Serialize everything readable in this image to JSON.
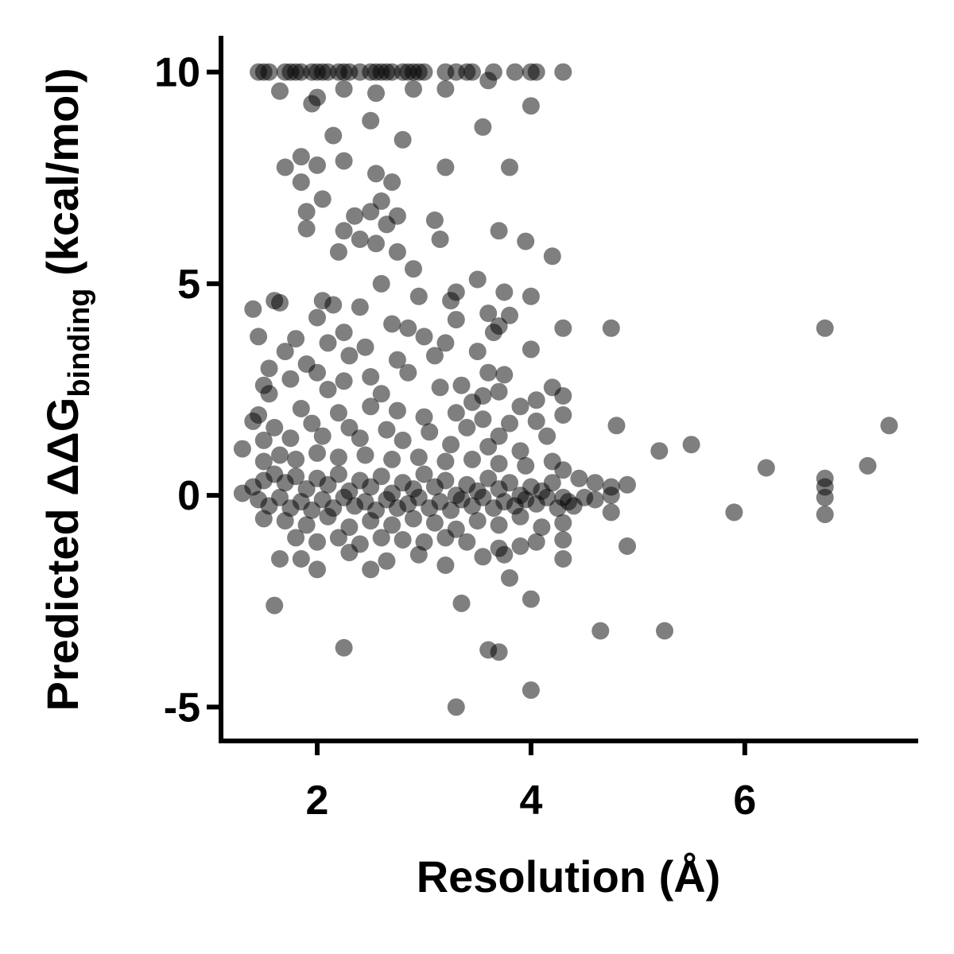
{
  "chart_data": {
    "type": "scatter",
    "title": "",
    "xlabel": "Resolution (Å)",
    "ylabel": {
      "prefix": "Predicted ΔΔG",
      "subscript": "binding",
      "suffix": " (kcal/mol)"
    },
    "xlim": [
      1.1,
      7.6
    ],
    "ylim": [
      -5.8,
      10.8
    ],
    "x_ticks": [
      {
        "value": 2,
        "label": "2"
      },
      {
        "value": 4,
        "label": "4"
      },
      {
        "value": 6,
        "label": "6"
      }
    ],
    "y_ticks": [
      {
        "value": 10,
        "label": "10"
      },
      {
        "value": 5,
        "label": "5"
      },
      {
        "value": 0,
        "label": "0"
      },
      {
        "value": -5,
        "label": "-5"
      }
    ],
    "grid": false,
    "legend": "none",
    "point_color": "#000000",
    "point_opacity": 0.5,
    "series": [
      {
        "values": [
          [
            1.45,
            10.0
          ],
          [
            1.5,
            10.0
          ],
          [
            1.55,
            10.0
          ],
          [
            1.7,
            10.0
          ],
          [
            1.75,
            10.0
          ],
          [
            1.8,
            10.0
          ],
          [
            1.85,
            10.0
          ],
          [
            1.95,
            10.0
          ],
          [
            2.0,
            10.0
          ],
          [
            2.05,
            10.0
          ],
          [
            2.1,
            10.0
          ],
          [
            2.2,
            10.0
          ],
          [
            2.25,
            10.0
          ],
          [
            2.3,
            10.0
          ],
          [
            2.4,
            10.0
          ],
          [
            2.5,
            10.0
          ],
          [
            2.55,
            10.0
          ],
          [
            2.6,
            10.0
          ],
          [
            2.65,
            10.0
          ],
          [
            2.7,
            10.0
          ],
          [
            2.8,
            10.0
          ],
          [
            2.85,
            10.0
          ],
          [
            2.9,
            10.0
          ],
          [
            2.95,
            10.0
          ],
          [
            3.0,
            10.0
          ],
          [
            3.2,
            10.0
          ],
          [
            3.3,
            10.0
          ],
          [
            3.4,
            10.0
          ],
          [
            3.45,
            10.0
          ],
          [
            3.65,
            10.0
          ],
          [
            3.85,
            10.0
          ],
          [
            4.0,
            10.0
          ],
          [
            4.05,
            10.0
          ],
          [
            4.3,
            10.0
          ],
          [
            1.65,
            9.55
          ],
          [
            2.0,
            9.4
          ],
          [
            2.25,
            9.6
          ],
          [
            2.55,
            9.5
          ],
          [
            2.9,
            9.6
          ],
          [
            3.2,
            9.6
          ],
          [
            3.6,
            9.8
          ],
          [
            4.0,
            9.2
          ],
          [
            1.95,
            9.25
          ],
          [
            2.5,
            8.85
          ],
          [
            3.55,
            8.7
          ],
          [
            2.15,
            8.5
          ],
          [
            2.8,
            8.4
          ],
          [
            1.85,
            8.0
          ],
          [
            2.0,
            7.8
          ],
          [
            2.25,
            7.9
          ],
          [
            1.7,
            7.75
          ],
          [
            2.55,
            7.6
          ],
          [
            3.2,
            7.75
          ],
          [
            3.8,
            7.75
          ],
          [
            1.85,
            7.4
          ],
          [
            2.05,
            7.0
          ],
          [
            2.7,
            7.4
          ],
          [
            2.6,
            6.95
          ],
          [
            1.9,
            6.7
          ],
          [
            2.35,
            6.6
          ],
          [
            2.5,
            6.7
          ],
          [
            2.75,
            6.6
          ],
          [
            1.9,
            6.3
          ],
          [
            2.25,
            6.25
          ],
          [
            2.65,
            6.4
          ],
          [
            3.1,
            6.5
          ],
          [
            3.7,
            6.25
          ],
          [
            3.95,
            6.0
          ],
          [
            2.4,
            6.05
          ],
          [
            2.55,
            5.95
          ],
          [
            3.15,
            6.05
          ],
          [
            2.2,
            5.75
          ],
          [
            2.75,
            5.75
          ],
          [
            4.2,
            5.65
          ],
          [
            2.9,
            5.35
          ],
          [
            2.6,
            5.0
          ],
          [
            3.5,
            5.1
          ],
          [
            1.65,
            4.55
          ],
          [
            2.05,
            4.6
          ],
          [
            3.3,
            4.8
          ],
          [
            3.75,
            4.8
          ],
          [
            4.0,
            4.7
          ],
          [
            1.4,
            4.4
          ],
          [
            2.15,
            4.5
          ],
          [
            2.4,
            4.45
          ],
          [
            2.95,
            4.7
          ],
          [
            3.25,
            4.6
          ],
          [
            3.6,
            4.3
          ],
          [
            1.6,
            4.6
          ],
          [
            3.3,
            4.15
          ],
          [
            3.8,
            4.25
          ],
          [
            2.0,
            4.2
          ],
          [
            2.7,
            4.05
          ],
          [
            3.7,
            4.0
          ],
          [
            4.3,
            3.95
          ],
          [
            4.75,
            3.95
          ],
          [
            6.75,
            3.95
          ],
          [
            1.45,
            3.75
          ],
          [
            2.25,
            3.85
          ],
          [
            2.85,
            3.95
          ],
          [
            3.0,
            3.75
          ],
          [
            3.65,
            3.85
          ],
          [
            1.8,
            3.7
          ],
          [
            2.1,
            3.6
          ],
          [
            2.45,
            3.5
          ],
          [
            3.2,
            3.6
          ],
          [
            3.5,
            3.4
          ],
          [
            4.0,
            3.45
          ],
          [
            1.7,
            3.4
          ],
          [
            2.3,
            3.3
          ],
          [
            2.75,
            3.2
          ],
          [
            3.1,
            3.3
          ],
          [
            1.55,
            3.0
          ],
          [
            1.9,
            3.1
          ],
          [
            3.6,
            2.9
          ],
          [
            3.75,
            2.85
          ],
          [
            1.5,
            2.6
          ],
          [
            1.75,
            2.75
          ],
          [
            2.0,
            2.9
          ],
          [
            2.25,
            2.7
          ],
          [
            2.5,
            2.8
          ],
          [
            2.85,
            2.9
          ],
          [
            3.35,
            2.6
          ],
          [
            4.2,
            2.55
          ],
          [
            4.3,
            2.35
          ],
          [
            4.05,
            2.25
          ],
          [
            3.55,
            2.35
          ],
          [
            3.7,
            2.45
          ],
          [
            1.55,
            2.4
          ],
          [
            2.1,
            2.5
          ],
          [
            2.6,
            2.4
          ],
          [
            3.15,
            2.55
          ],
          [
            3.45,
            2.2
          ],
          [
            3.9,
            2.1
          ],
          [
            4.3,
            1.9
          ],
          [
            4.05,
            1.75
          ],
          [
            4.15,
            1.4
          ],
          [
            4.8,
            1.65
          ],
          [
            7.35,
            1.65
          ],
          [
            1.45,
            1.9
          ],
          [
            1.85,
            2.05
          ],
          [
            2.2,
            1.95
          ],
          [
            2.5,
            2.1
          ],
          [
            2.75,
            2.0
          ],
          [
            3.0,
            1.85
          ],
          [
            3.3,
            1.95
          ],
          [
            3.55,
            1.8
          ],
          [
            3.8,
            1.7
          ],
          [
            1.4,
            1.75
          ],
          [
            1.6,
            1.6
          ],
          [
            1.95,
            1.7
          ],
          [
            2.3,
            1.6
          ],
          [
            2.65,
            1.55
          ],
          [
            3.05,
            1.5
          ],
          [
            3.4,
            1.6
          ],
          [
            3.7,
            1.4
          ],
          [
            1.3,
            1.1
          ],
          [
            1.5,
            1.3
          ],
          [
            1.75,
            1.35
          ],
          [
            2.05,
            1.4
          ],
          [
            2.4,
            1.35
          ],
          [
            2.8,
            1.3
          ],
          [
            3.25,
            1.2
          ],
          [
            3.6,
            1.15
          ],
          [
            3.9,
            1.05
          ],
          [
            5.5,
            1.2
          ],
          [
            5.2,
            1.05
          ],
          [
            7.15,
            0.7
          ],
          [
            6.2,
            0.65
          ],
          [
            6.75,
            0.4
          ],
          [
            6.75,
            0.2
          ],
          [
            6.75,
            -0.05
          ],
          [
            6.75,
            -0.45
          ],
          [
            5.9,
            -0.4
          ],
          [
            4.9,
            0.25
          ],
          [
            1.5,
            0.8
          ],
          [
            1.65,
            0.95
          ],
          [
            1.8,
            0.85
          ],
          [
            2.0,
            1.0
          ],
          [
            2.2,
            0.9
          ],
          [
            2.45,
            0.95
          ],
          [
            2.7,
            0.85
          ],
          [
            2.95,
            0.9
          ],
          [
            3.2,
            0.8
          ],
          [
            3.45,
            0.85
          ],
          [
            3.7,
            0.75
          ],
          [
            3.95,
            0.7
          ],
          [
            4.2,
            0.8
          ],
          [
            4.3,
            0.6
          ],
          [
            4.45,
            0.4
          ],
          [
            4.6,
            0.3
          ],
          [
            4.75,
            0.2
          ],
          [
            4.75,
            0.0
          ],
          [
            4.75,
            -0.4
          ],
          [
            4.6,
            -0.1
          ],
          [
            1.3,
            0.05
          ],
          [
            1.4,
            0.2
          ],
          [
            1.5,
            0.35
          ],
          [
            1.6,
            0.5
          ],
          [
            1.7,
            0.3
          ],
          [
            1.8,
            0.45
          ],
          [
            1.9,
            0.15
          ],
          [
            2.0,
            0.4
          ],
          [
            2.1,
            0.25
          ],
          [
            2.2,
            0.5
          ],
          [
            2.3,
            0.1
          ],
          [
            2.4,
            0.35
          ],
          [
            2.5,
            0.2
          ],
          [
            2.6,
            0.45
          ],
          [
            2.7,
            0.05
          ],
          [
            2.8,
            0.3
          ],
          [
            2.9,
            0.15
          ],
          [
            3.0,
            0.5
          ],
          [
            3.1,
            0.2
          ],
          [
            3.2,
            0.35
          ],
          [
            3.3,
            0.0
          ],
          [
            3.4,
            0.25
          ],
          [
            3.5,
            0.1
          ],
          [
            3.6,
            0.4
          ],
          [
            3.7,
            0.15
          ],
          [
            3.8,
            0.3
          ],
          [
            3.9,
            0.0
          ],
          [
            4.0,
            0.2
          ],
          [
            4.1,
            0.1
          ],
          [
            4.2,
            0.3
          ],
          [
            4.3,
            -0.05
          ],
          [
            1.45,
            -0.1
          ],
          [
            1.55,
            -0.25
          ],
          [
            1.65,
            -0.05
          ],
          [
            1.75,
            -0.3
          ],
          [
            1.85,
            -0.15
          ],
          [
            1.95,
            -0.35
          ],
          [
            2.05,
            -0.1
          ],
          [
            2.15,
            -0.3
          ],
          [
            2.25,
            -0.05
          ],
          [
            2.35,
            -0.25
          ],
          [
            2.45,
            -0.15
          ],
          [
            2.55,
            -0.35
          ],
          [
            2.65,
            -0.1
          ],
          [
            2.75,
            -0.3
          ],
          [
            2.85,
            -0.2
          ],
          [
            2.95,
            -0.05
          ],
          [
            3.05,
            -0.3
          ],
          [
            3.15,
            -0.15
          ],
          [
            3.25,
            -0.35
          ],
          [
            3.35,
            -0.1
          ],
          [
            3.45,
            -0.25
          ],
          [
            3.55,
            -0.05
          ],
          [
            3.65,
            -0.3
          ],
          [
            3.75,
            -0.15
          ],
          [
            3.85,
            -0.25
          ],
          [
            3.95,
            -0.1
          ],
          [
            4.05,
            -0.2
          ],
          [
            4.15,
            -0.05
          ],
          [
            4.25,
            -0.3
          ],
          [
            4.35,
            -0.15
          ],
          [
            4.5,
            -0.05
          ],
          [
            1.5,
            -0.55
          ],
          [
            1.7,
            -0.6
          ],
          [
            1.9,
            -0.7
          ],
          [
            2.1,
            -0.5
          ],
          [
            2.3,
            -0.75
          ],
          [
            2.5,
            -0.6
          ],
          [
            2.7,
            -0.7
          ],
          [
            2.9,
            -0.55
          ],
          [
            3.1,
            -0.65
          ],
          [
            3.3,
            -0.8
          ],
          [
            3.5,
            -0.6
          ],
          [
            3.7,
            -0.7
          ],
          [
            3.9,
            -0.5
          ],
          [
            4.1,
            -0.75
          ],
          [
            4.3,
            -0.65
          ],
          [
            4.4,
            -0.25
          ],
          [
            1.8,
            -1.0
          ],
          [
            2.0,
            -1.1
          ],
          [
            2.2,
            -1.0
          ],
          [
            2.4,
            -1.15
          ],
          [
            2.6,
            -1.0
          ],
          [
            2.8,
            -1.05
          ],
          [
            3.0,
            -1.1
          ],
          [
            3.2,
            -1.0
          ],
          [
            3.4,
            -1.1
          ],
          [
            3.7,
            -1.25
          ],
          [
            3.9,
            -1.2
          ],
          [
            4.05,
            -1.1
          ],
          [
            4.3,
            -1.05
          ],
          [
            4.9,
            -1.2
          ],
          [
            1.65,
            -1.5
          ],
          [
            1.85,
            -1.5
          ],
          [
            2.0,
            -1.75
          ],
          [
            2.3,
            -1.35
          ],
          [
            2.5,
            -1.75
          ],
          [
            2.65,
            -1.55
          ],
          [
            2.95,
            -1.4
          ],
          [
            3.2,
            -1.65
          ],
          [
            3.55,
            -1.45
          ],
          [
            3.75,
            -1.4
          ],
          [
            3.8,
            -1.95
          ],
          [
            4.3,
            -1.5
          ],
          [
            1.6,
            -2.6
          ],
          [
            3.35,
            -2.55
          ],
          [
            4.0,
            -2.45
          ],
          [
            4.65,
            -3.2
          ],
          [
            5.25,
            -3.2
          ],
          [
            2.25,
            -3.6
          ],
          [
            3.6,
            -3.65
          ],
          [
            3.7,
            -3.7
          ],
          [
            4.0,
            -4.6
          ],
          [
            3.3,
            -5.0
          ]
        ]
      }
    ]
  }
}
